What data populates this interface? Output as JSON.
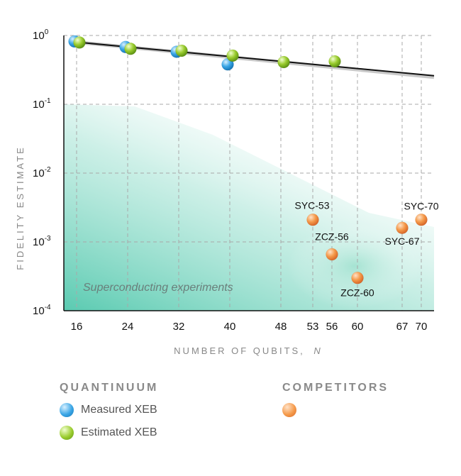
{
  "colors": {
    "measured": "#3aa6e6",
    "estimated": "#9acc2e",
    "competitor": "#f59a4a",
    "region": "#3dc1a3",
    "fit_line": "#111111"
  },
  "region_label": "Superconducting experiments",
  "legend": {
    "quantinuum_title": "QUANTINUUM",
    "competitors_title": "COMPETITORS",
    "measured_label": "Measured XEB",
    "estimated_label": "Estimated XEB"
  },
  "chart_data": {
    "type": "scatter",
    "xlabel_main": "NUMBER OF QUBITS,",
    "xlabel_var": "N",
    "ylabel": "FIDELITY ESTIMATE",
    "y_scale": "log",
    "ylim": [
      0.0001,
      1
    ],
    "xlim": [
      14,
      72
    ],
    "x_ticks": [
      16,
      24,
      32,
      40,
      48,
      53,
      56,
      60,
      67,
      70
    ],
    "y_ticks": [
      {
        "base": "10",
        "exp": "0",
        "value": 1
      },
      {
        "base": "10",
        "exp": "-1",
        "value": 0.1
      },
      {
        "base": "10",
        "exp": "-2",
        "value": 0.01
      },
      {
        "base": "10",
        "exp": "-3",
        "value": 0.001
      },
      {
        "base": "10",
        "exp": "-4",
        "value": 0.0001
      }
    ],
    "grid": true,
    "fit_line": {
      "x": [
        16,
        72
      ],
      "y": [
        0.8,
        0.26
      ]
    },
    "series": [
      {
        "key": "measured",
        "points": [
          {
            "x": 16,
            "y": 0.82
          },
          {
            "x": 24,
            "y": 0.68
          },
          {
            "x": 32,
            "y": 0.58
          },
          {
            "x": 40,
            "y": 0.38
          }
        ]
      },
      {
        "key": "estimated",
        "points": [
          {
            "x": 16,
            "y": 0.79
          },
          {
            "x": 24,
            "y": 0.64
          },
          {
            "x": 32,
            "y": 0.6
          },
          {
            "x": 40,
            "y": 0.51
          },
          {
            "x": 48,
            "y": 0.41
          },
          {
            "x": 56,
            "y": 0.42
          }
        ]
      },
      {
        "key": "competitor",
        "points": [
          {
            "x": 53,
            "y": 0.0021,
            "label": "SYC-53"
          },
          {
            "x": 56,
            "y": 0.00066,
            "label": "ZCZ-56"
          },
          {
            "x": 60,
            "y": 0.0003,
            "label": "ZCZ-60"
          },
          {
            "x": 67,
            "y": 0.0016,
            "label": "SYC-67"
          },
          {
            "x": 70,
            "y": 0.0021,
            "label": "SYC-70"
          }
        ]
      }
    ]
  }
}
